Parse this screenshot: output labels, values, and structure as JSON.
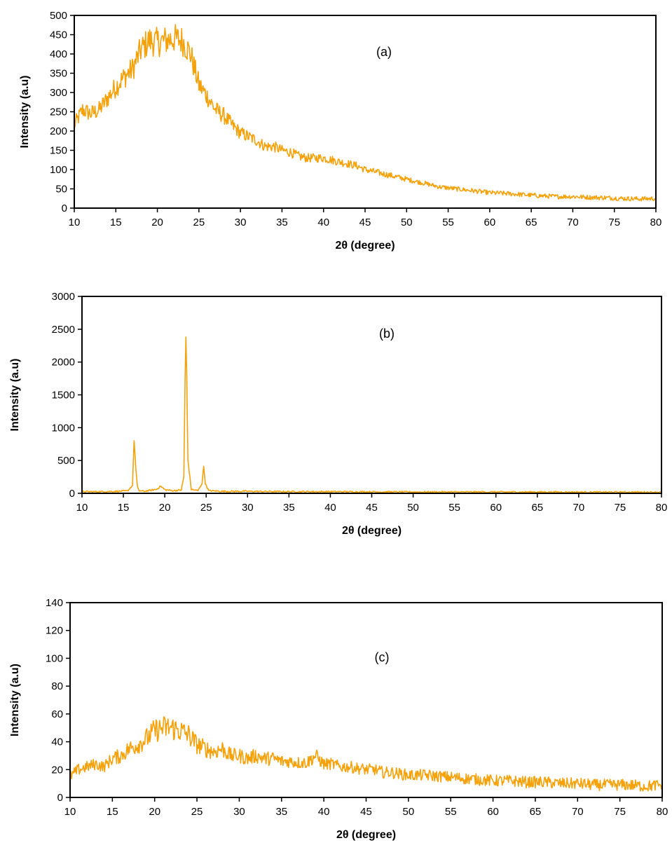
{
  "series_color": "#F5A10A",
  "chart_data": [
    {
      "type": "line",
      "panel_label": "(a)",
      "xlabel": "2θ (degree)",
      "ylabel": "Intensity (a.u)",
      "xlim": [
        10,
        80
      ],
      "ylim": [
        0,
        500
      ],
      "xticks": [
        10,
        15,
        20,
        25,
        30,
        35,
        40,
        45,
        50,
        55,
        60,
        65,
        70,
        75,
        80
      ],
      "yticks": [
        0,
        50,
        100,
        150,
        200,
        250,
        300,
        350,
        400,
        450,
        500
      ],
      "grid": false,
      "x": [
        10,
        11,
        12,
        13,
        14,
        15,
        16,
        17,
        18,
        19,
        20,
        21,
        22,
        23,
        24,
        25,
        26,
        27,
        28,
        29,
        30,
        31,
        32,
        33,
        34,
        35,
        36,
        37,
        38,
        39,
        40,
        41,
        42,
        43,
        44,
        45,
        46,
        47,
        48,
        49,
        50,
        52,
        54,
        56,
        58,
        60,
        62,
        64,
        66,
        68,
        70,
        72,
        74,
        76,
        78,
        80
      ],
      "y": [
        215,
        255,
        245,
        255,
        285,
        315,
        340,
        360,
        410,
        435,
        430,
        435,
        440,
        435,
        400,
        320,
        290,
        255,
        240,
        215,
        195,
        185,
        175,
        160,
        160,
        150,
        145,
        135,
        130,
        130,
        130,
        125,
        120,
        115,
        110,
        100,
        95,
        90,
        85,
        80,
        75,
        65,
        55,
        50,
        45,
        40,
        38,
        35,
        32,
        30,
        30,
        28,
        27,
        25,
        24,
        25
      ]
    },
    {
      "type": "line",
      "panel_label": "(b)",
      "xlabel": "2θ (degree)",
      "ylabel": "Intensity (a.u)",
      "xlim": [
        10,
        80
      ],
      "ylim": [
        0,
        3000
      ],
      "xticks": [
        10,
        15,
        20,
        25,
        30,
        35,
        40,
        45,
        50,
        55,
        60,
        65,
        70,
        75,
        80
      ],
      "yticks": [
        0,
        500,
        1000,
        1500,
        2000,
        2500,
        3000
      ],
      "grid": false,
      "x": [
        10,
        12,
        14,
        15.5,
        16.1,
        16.3,
        16.5,
        16.7,
        16.9,
        17.5,
        19,
        19.5,
        20,
        21,
        22,
        22.3,
        22.45,
        22.55,
        22.65,
        22.8,
        23.2,
        24,
        24.5,
        24.7,
        24.9,
        25.3,
        27,
        30,
        35,
        40,
        45,
        50,
        55,
        60,
        65,
        70,
        75,
        80
      ],
      "y": [
        25,
        25,
        30,
        35,
        120,
        810,
        380,
        90,
        40,
        30,
        60,
        110,
        55,
        40,
        50,
        250,
        1700,
        2380,
        1800,
        500,
        60,
        40,
        150,
        410,
        150,
        40,
        30,
        30,
        25,
        25,
        22,
        20,
        20,
        20,
        20,
        18,
        18,
        18
      ]
    },
    {
      "type": "line",
      "panel_label": "(c)",
      "xlabel": "2θ (degree)",
      "ylabel": "Intensity (a.u)",
      "xlim": [
        10,
        80
      ],
      "ylim": [
        0,
        140
      ],
      "xticks": [
        10,
        15,
        20,
        25,
        30,
        35,
        40,
        45,
        50,
        55,
        60,
        65,
        70,
        75,
        80
      ],
      "yticks": [
        0,
        20,
        40,
        60,
        80,
        100,
        120,
        140
      ],
      "grid": false,
      "x": [
        10,
        11,
        12,
        13,
        14,
        15,
        16,
        17,
        18,
        19,
        20,
        21,
        22,
        23,
        24,
        25,
        26,
        27,
        28,
        29,
        30,
        31,
        32,
        33,
        34,
        35,
        36,
        37,
        38,
        39,
        40,
        41,
        42,
        43,
        44,
        45,
        46,
        47,
        48,
        49,
        50,
        52,
        54,
        56,
        58,
        60,
        62,
        64,
        66,
        68,
        70,
        72,
        74,
        76,
        78,
        80
      ],
      "y": [
        15,
        20,
        22,
        24,
        22,
        28,
        30,
        35,
        38,
        42,
        48,
        50,
        50,
        48,
        45,
        38,
        35,
        33,
        35,
        30,
        30,
        28,
        30,
        28,
        28,
        26,
        26,
        25,
        25,
        30,
        24,
        24,
        22,
        22,
        21,
        20,
        20,
        18,
        18,
        17,
        16,
        16,
        15,
        14,
        13,
        12,
        12,
        11,
        11,
        10,
        10,
        9,
        9,
        9,
        8,
        9
      ]
    }
  ]
}
